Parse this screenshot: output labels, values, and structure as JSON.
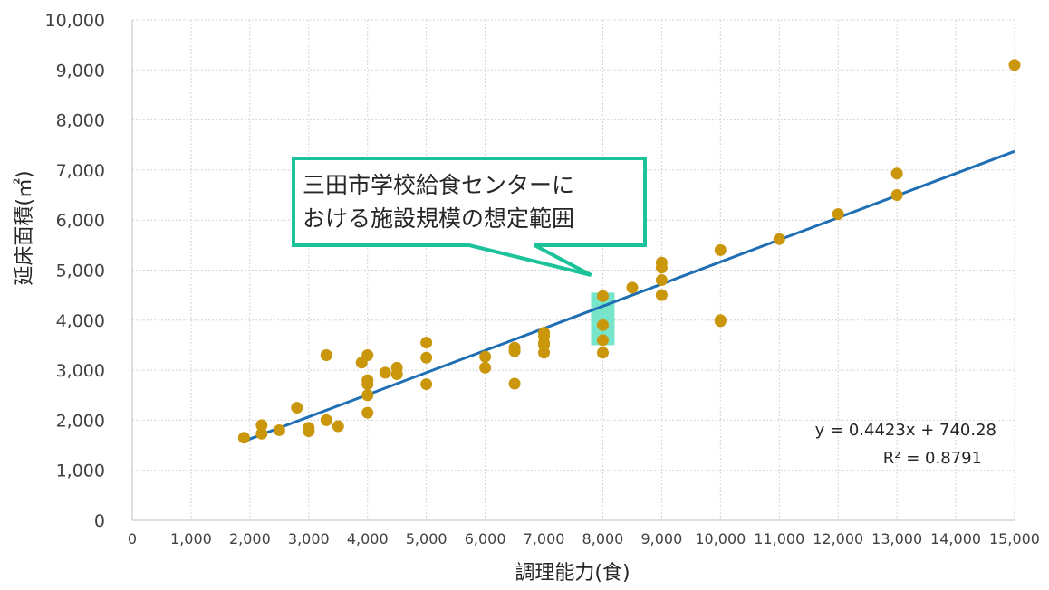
{
  "chart_data": {
    "type": "scatter",
    "xlabel": "調理能力(食)",
    "ylabel": "延床面積(㎡)",
    "xlim": [
      0,
      15000
    ],
    "ylim": [
      0,
      10000
    ],
    "x_ticks": [
      "0",
      "1,000",
      "2,000",
      "3,000",
      "4,000",
      "5,000",
      "6,000",
      "7,000",
      "8,000",
      "9,000",
      "10,000",
      "11,000",
      "12,000",
      "13,000",
      "14,000",
      "15,000"
    ],
    "y_ticks": [
      "0",
      "1,000",
      "2,000",
      "3,000",
      "4,000",
      "5,000",
      "6,000",
      "7,000",
      "8,000",
      "9,000",
      "10,000"
    ],
    "grid": true,
    "point_color": "#C9960C",
    "trend_color": "#1F6FB5",
    "points": [
      {
        "x": 1900,
        "y": 1650
      },
      {
        "x": 2200,
        "y": 1900
      },
      {
        "x": 2200,
        "y": 1730
      },
      {
        "x": 2500,
        "y": 1800
      },
      {
        "x": 2800,
        "y": 2250
      },
      {
        "x": 3000,
        "y": 1850
      },
      {
        "x": 3000,
        "y": 1780
      },
      {
        "x": 3300,
        "y": 3300
      },
      {
        "x": 3300,
        "y": 2000
      },
      {
        "x": 3500,
        "y": 1880
      },
      {
        "x": 3900,
        "y": 3150
      },
      {
        "x": 4000,
        "y": 3300
      },
      {
        "x": 4000,
        "y": 2800
      },
      {
        "x": 4000,
        "y": 2720
      },
      {
        "x": 4000,
        "y": 2500
      },
      {
        "x": 4000,
        "y": 2150
      },
      {
        "x": 4300,
        "y": 2950
      },
      {
        "x": 4500,
        "y": 3050
      },
      {
        "x": 4500,
        "y": 2920
      },
      {
        "x": 5000,
        "y": 3550
      },
      {
        "x": 5000,
        "y": 3250
      },
      {
        "x": 5000,
        "y": 2720
      },
      {
        "x": 6000,
        "y": 3270
      },
      {
        "x": 6000,
        "y": 3050
      },
      {
        "x": 6500,
        "y": 3450
      },
      {
        "x": 6500,
        "y": 3380
      },
      {
        "x": 6500,
        "y": 2730
      },
      {
        "x": 7000,
        "y": 3750
      },
      {
        "x": 7000,
        "y": 3680
      },
      {
        "x": 7000,
        "y": 3550
      },
      {
        "x": 7000,
        "y": 3500
      },
      {
        "x": 7000,
        "y": 3350
      },
      {
        "x": 8000,
        "y": 4480
      },
      {
        "x": 8000,
        "y": 3900
      },
      {
        "x": 8000,
        "y": 3600
      },
      {
        "x": 8000,
        "y": 3350
      },
      {
        "x": 8500,
        "y": 4650
      },
      {
        "x": 9000,
        "y": 5150
      },
      {
        "x": 9000,
        "y": 5050
      },
      {
        "x": 9000,
        "y": 4800
      },
      {
        "x": 9000,
        "y": 4500
      },
      {
        "x": 10000,
        "y": 5400
      },
      {
        "x": 10000,
        "y": 4000
      },
      {
        "x": 10000,
        "y": 3980
      },
      {
        "x": 11000,
        "y": 5620
      },
      {
        "x": 12000,
        "y": 6120
      },
      {
        "x": 13000,
        "y": 6930
      },
      {
        "x": 13000,
        "y": 6500
      },
      {
        "x": 15000,
        "y": 9100
      }
    ],
    "trendline": {
      "slope": 0.4423,
      "intercept": 740.28,
      "x_range": [
        1900,
        15000
      ],
      "equation_label": "y = 0.4423x + 740.28",
      "r2_label": "R² = 0.8791"
    },
    "highlight": {
      "x_range": [
        7800,
        8200
      ],
      "y_range": [
        3500,
        4550
      ],
      "color": "#5FE0C0"
    },
    "annotation": {
      "lines": [
        "三田市学校給食センターに",
        "ける施設規模の想定範囲"
      ],
      "first_char_line2": "お",
      "border_color": "#1BC29A",
      "pointer_to": {
        "x": 7800,
        "y": 4900
      }
    }
  }
}
